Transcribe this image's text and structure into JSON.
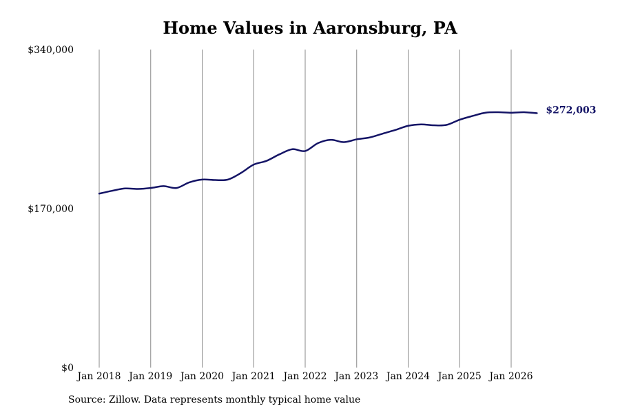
{
  "chart_data": {
    "type": "line",
    "title": "Home Values in Aaronsburg, PA",
    "xlabel": "",
    "ylabel": "",
    "ylim": [
      0,
      340000
    ],
    "y_ticks": [
      {
        "value": 0,
        "label": "$0"
      },
      {
        "value": 170000,
        "label": "$170,000"
      },
      {
        "value": 340000,
        "label": "$340,000"
      }
    ],
    "x_ticks": [
      {
        "value": "2018-01",
        "label": "Jan 2018"
      },
      {
        "value": "2019-01",
        "label": "Jan 2019"
      },
      {
        "value": "2020-01",
        "label": "Jan 2020"
      },
      {
        "value": "2021-01",
        "label": "Jan 2021"
      },
      {
        "value": "2022-01",
        "label": "Jan 2022"
      },
      {
        "value": "2023-01",
        "label": "Jan 2023"
      },
      {
        "value": "2024-01",
        "label": "Jan 2024"
      },
      {
        "value": "2025-01",
        "label": "Jan 2025"
      },
      {
        "value": "2026-01",
        "label": "Jan 2026"
      }
    ],
    "xlim": [
      "2018-01",
      "2026-07"
    ],
    "grid": "vertical",
    "line_color": "#141466",
    "grid_color": "#888888",
    "end_label": "$272,003",
    "series": [
      {
        "x": [
          "2018-01",
          "2018-04",
          "2018-07",
          "2018-10",
          "2019-01",
          "2019-04",
          "2019-07",
          "2019-10",
          "2020-01",
          "2020-04",
          "2020-07",
          "2020-10",
          "2021-01",
          "2021-04",
          "2021-07",
          "2021-10",
          "2022-01",
          "2022-04",
          "2022-07",
          "2022-10",
          "2023-01",
          "2023-04",
          "2023-07",
          "2023-10",
          "2024-01",
          "2024-04",
          "2024-07",
          "2024-10",
          "2025-01",
          "2025-04",
          "2025-07",
          "2025-10",
          "2026-01",
          "2026-04",
          "2026-07"
        ],
        "values": [
          186000,
          189000,
          191500,
          191000,
          192000,
          194000,
          192000,
          198000,
          201000,
          200500,
          201000,
          208000,
          217000,
          221000,
          228000,
          233500,
          231500,
          240000,
          243500,
          241000,
          244000,
          246000,
          250000,
          254000,
          258500,
          260000,
          259000,
          259500,
          265000,
          269000,
          272500,
          273000,
          272500,
          273000,
          272003
        ]
      }
    ]
  },
  "source": "Source: Zillow. Data represents monthly typical home value"
}
